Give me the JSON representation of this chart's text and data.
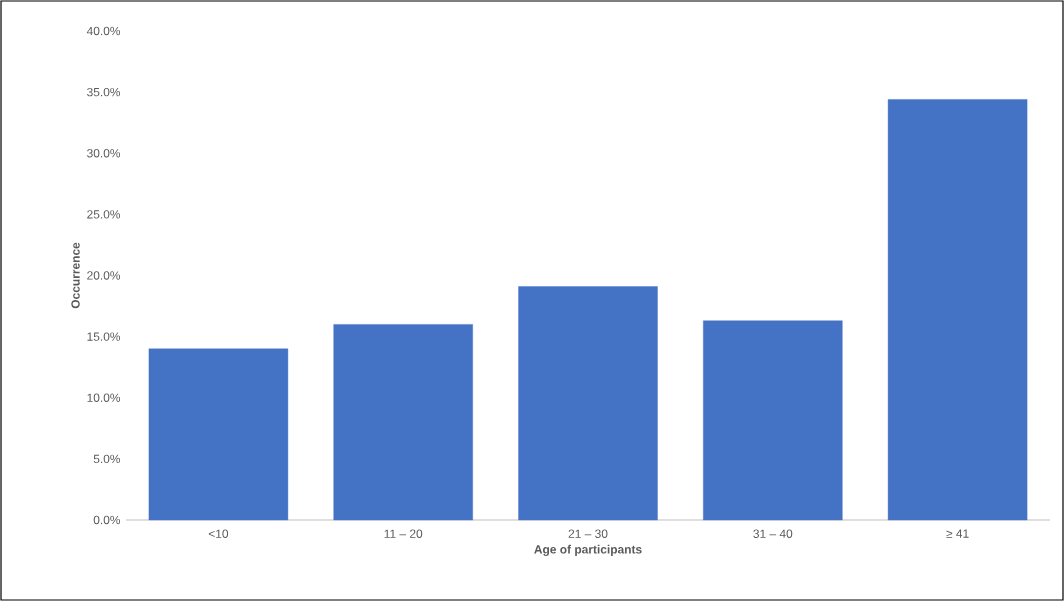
{
  "chart_data": {
    "type": "bar",
    "categories": [
      "<10",
      "11 – 20",
      "21 – 30",
      "31 – 40",
      "≥ 41"
    ],
    "values": [
      14.0,
      16.0,
      19.1,
      16.3,
      34.4
    ],
    "color": "#4472c4",
    "xlabel": "Age of participants",
    "ylabel": "Occurrence",
    "ylim": [
      0,
      40
    ],
    "yticks": [
      {
        "value": 0,
        "label": "0.0%"
      },
      {
        "value": 5,
        "label": "5.0%"
      },
      {
        "value": 10,
        "label": "10.0%"
      },
      {
        "value": 15,
        "label": "15.0%"
      },
      {
        "value": 20,
        "label": "20.0%"
      },
      {
        "value": 25,
        "label": "25.0%"
      },
      {
        "value": 30,
        "label": "30.0%"
      },
      {
        "value": 35,
        "label": "35.0%"
      },
      {
        "value": 40,
        "label": "40.0%"
      }
    ]
  }
}
